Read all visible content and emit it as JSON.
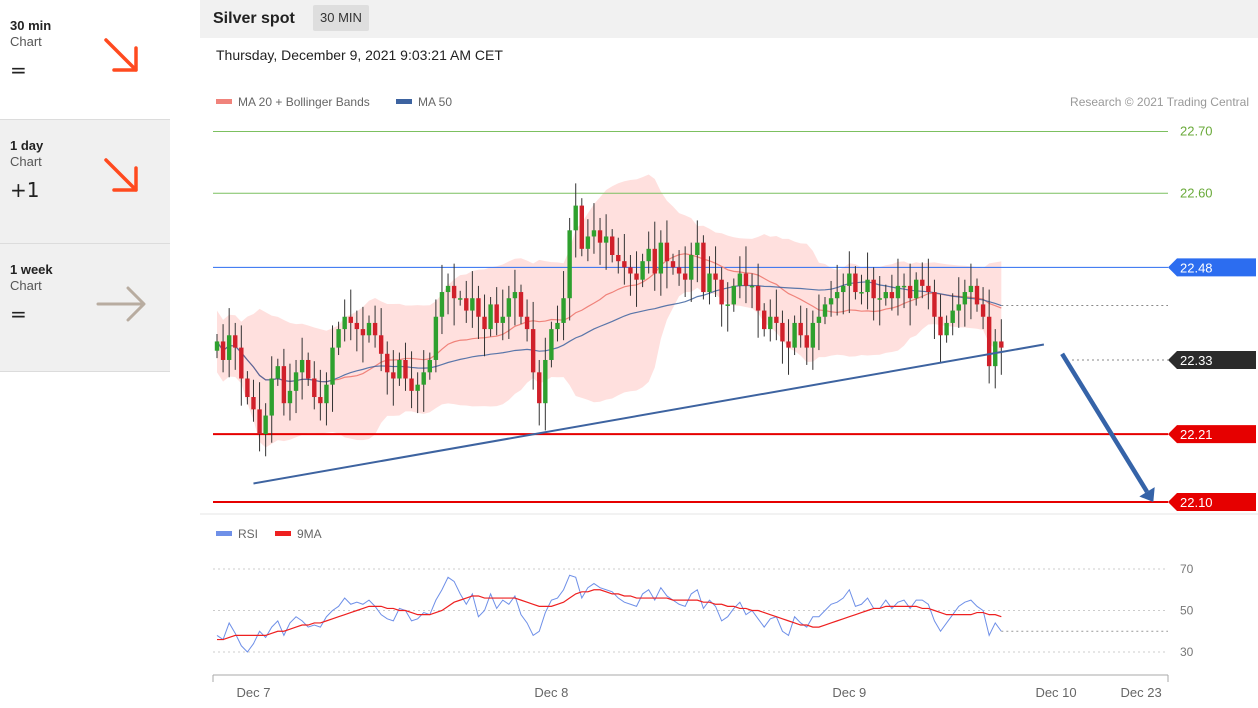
{
  "sidebar": {
    "items": [
      {
        "label": "30 min",
        "sub": "Chart",
        "value": "=",
        "icon": "arrow-down-right-icon",
        "color": "#ff4a1f",
        "selected": true
      },
      {
        "label": "1 day",
        "sub": "Chart",
        "value": "+1",
        "icon": "arrow-down-right-icon",
        "color": "#ff4a1f",
        "selected": false
      },
      {
        "label": "1 week",
        "sub": "Chart",
        "value": "=",
        "icon": "arrow-right-icon",
        "color": "#b8aca0",
        "selected": false
      }
    ]
  },
  "header": {
    "title": "Silver spot",
    "badge": "30 MIN"
  },
  "timestamp": "Thursday, December 9, 2021 9:03:21 AM CET",
  "colors": {
    "ma20": "#f0837b",
    "ma50": "#3d63a0",
    "band": "#ffd6d3",
    "up": "#2ea02e",
    "down": "#d0202a",
    "resistance": "#7cc060",
    "level_blue": "#2c6df0",
    "support": "#e60000",
    "rsi": "#6f90e8",
    "rsi_ma": "#ee2020"
  },
  "chart_data": [
    {
      "type": "candlestick",
      "legend": [
        {
          "label": "MA 20 + Bollinger Bands",
          "color": "#f0837b"
        },
        {
          "label": "MA 50",
          "color": "#3d63a0"
        }
      ],
      "copyright": "Research © 2021 Trading Central",
      "ylim": [
        22.04,
        22.74
      ],
      "levels": [
        {
          "value": 22.7,
          "label": "22.70",
          "style": "resistance"
        },
        {
          "value": 22.6,
          "label": "22.60",
          "style": "resistance"
        },
        {
          "value": 22.48,
          "label": "22.48",
          "style": "pivot"
        },
        {
          "value": 22.33,
          "label": "22.33",
          "style": "current"
        },
        {
          "value": 22.21,
          "label": "22.21",
          "style": "support"
        },
        {
          "value": 22.1,
          "label": "22.10",
          "style": "support"
        }
      ],
      "x_ticks": [
        {
          "i": 6,
          "label": "Dec 7"
        },
        {
          "i": 55,
          "label": "Dec 8"
        },
        {
          "i": 104,
          "label": "Dec 9"
        },
        {
          "i": 138,
          "label": "Dec 10"
        },
        {
          "i": 152,
          "label": "Dec 23"
        }
      ],
      "trendline": [
        {
          "i": 6,
          "value": 22.13
        },
        {
          "i": 136,
          "value": 22.355
        }
      ],
      "forecast_arrow": [
        {
          "i": 139,
          "value": 22.34
        },
        {
          "i": 154,
          "value": 22.1
        }
      ],
      "close": [
        22.36,
        22.33,
        22.37,
        22.35,
        22.3,
        22.27,
        22.25,
        22.21,
        22.24,
        22.3,
        22.32,
        22.26,
        22.28,
        22.31,
        22.33,
        22.3,
        22.27,
        22.26,
        22.29,
        22.35,
        22.38,
        22.4,
        22.39,
        22.38,
        22.37,
        22.39,
        22.37,
        22.34,
        22.31,
        22.3,
        22.33,
        22.3,
        22.28,
        22.29,
        22.31,
        22.33,
        22.4,
        22.44,
        22.45,
        22.43,
        22.43,
        22.41,
        22.43,
        22.4,
        22.38,
        22.42,
        22.39,
        22.4,
        22.43,
        22.44,
        22.4,
        22.38,
        22.31,
        22.26,
        22.33,
        22.38,
        22.39,
        22.43,
        22.54,
        22.58,
        22.51,
        22.53,
        22.54,
        22.52,
        22.53,
        22.5,
        22.49,
        22.48,
        22.47,
        22.46,
        22.49,
        22.51,
        22.47,
        22.52,
        22.49,
        22.48,
        22.47,
        22.46,
        22.5,
        22.52,
        22.44,
        22.47,
        22.46,
        22.42,
        22.42,
        22.45,
        22.47,
        22.45,
        22.45,
        22.41,
        22.38,
        22.4,
        22.39,
        22.36,
        22.35,
        22.39,
        22.37,
        22.35,
        22.39,
        22.4,
        22.42,
        22.43,
        22.44,
        22.45,
        22.47,
        22.44,
        22.44,
        22.46,
        22.43,
        22.43,
        22.44,
        22.43,
        22.45,
        22.45,
        22.43,
        22.46,
        22.45,
        22.44,
        22.4,
        22.37,
        22.39,
        22.41,
        22.42,
        22.44,
        22.45,
        22.42,
        22.4,
        22.32,
        22.36,
        22.35
      ]
    },
    {
      "type": "line",
      "legend": [
        {
          "label": "RSI",
          "color": "#6f90e8"
        },
        {
          "label": "9MA",
          "color": "#ee2020"
        }
      ],
      "ylim": [
        21,
        79
      ],
      "y_ticks": [
        30,
        50,
        70
      ],
      "series": [
        {
          "name": "RSI",
          "values": [
            38,
            36,
            44,
            39,
            33,
            30,
            34,
            40,
            37,
            42,
            45,
            38,
            44,
            47,
            45,
            42,
            43,
            42,
            47,
            50,
            52,
            56,
            53,
            54,
            53,
            55,
            52,
            48,
            46,
            45,
            51,
            50,
            45,
            46,
            49,
            48,
            55,
            60,
            66,
            64,
            58,
            53,
            58,
            47,
            50,
            58,
            51,
            55,
            53,
            57,
            48,
            44,
            38,
            40,
            49,
            55,
            56,
            60,
            67,
            66,
            56,
            61,
            63,
            61,
            60,
            59,
            56,
            54,
            53,
            52,
            58,
            60,
            55,
            61,
            57,
            55,
            53,
            52,
            58,
            60,
            51,
            55,
            52,
            45,
            47,
            51,
            54,
            48,
            50,
            46,
            42,
            46,
            47,
            40,
            38,
            47,
            44,
            42,
            47,
            47,
            50,
            53,
            54,
            56,
            60,
            52,
            53,
            56,
            51,
            51,
            55,
            51,
            54,
            55,
            51,
            55,
            55,
            53,
            45,
            40,
            44,
            48,
            52,
            54,
            55,
            52,
            50,
            38,
            44,
            40
          ]
        },
        {
          "name": "9MA",
          "values": [
            36,
            36,
            37,
            38,
            38,
            38,
            38,
            38,
            38,
            39,
            40,
            40,
            41,
            42,
            43,
            43,
            44,
            44,
            45,
            46,
            47,
            48,
            49,
            50,
            51,
            52,
            52,
            52,
            51,
            51,
            50,
            50,
            49,
            48,
            48,
            48,
            49,
            50,
            52,
            54,
            55,
            56,
            57,
            57,
            56,
            56,
            56,
            56,
            56,
            56,
            55,
            54,
            53,
            52,
            52,
            52,
            53,
            54,
            56,
            58,
            59,
            59,
            60,
            60,
            59,
            58,
            58,
            57,
            57,
            56,
            56,
            56,
            56,
            56,
            56,
            55,
            55,
            55,
            55,
            55,
            54,
            54,
            53,
            53,
            52,
            52,
            51,
            51,
            50,
            50,
            49,
            48,
            47,
            46,
            45,
            44,
            43,
            43,
            42,
            42,
            43,
            44,
            45,
            46,
            47,
            48,
            49,
            50,
            51,
            51,
            52,
            52,
            52,
            52,
            52,
            52,
            51,
            51,
            50,
            49,
            48,
            48,
            48,
            48,
            48,
            49,
            49,
            48,
            48,
            47
          ]
        }
      ]
    }
  ]
}
